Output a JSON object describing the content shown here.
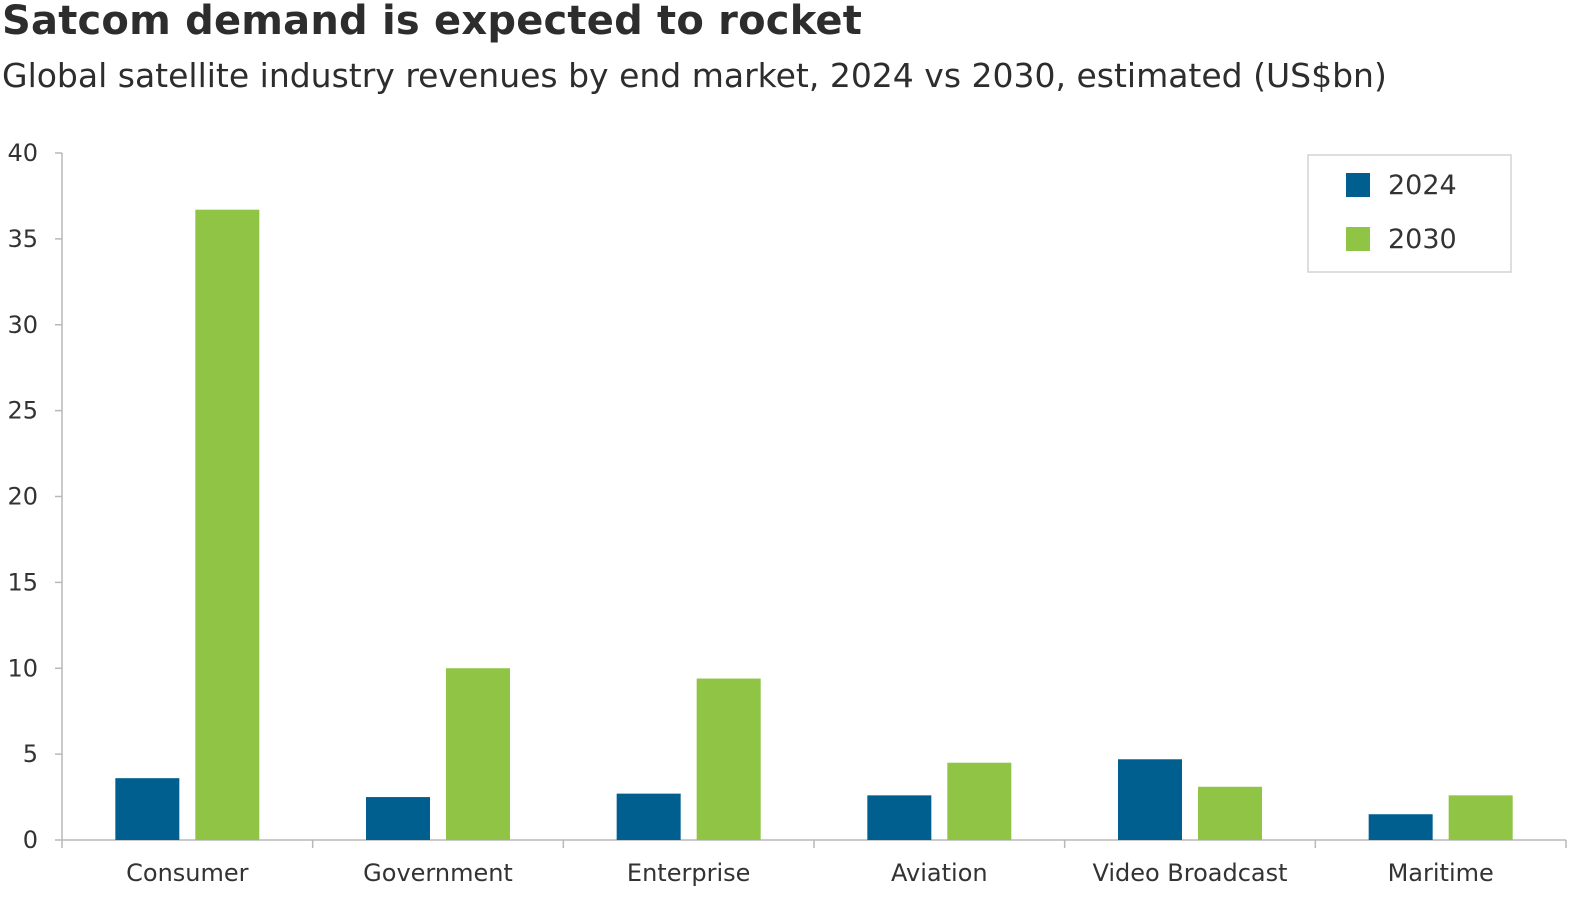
{
  "header": {
    "title": "Satcom demand is expected to rocket",
    "subtitle": "Global satellite industry revenues by end market, 2024 vs 2030, estimated (US$bn)"
  },
  "colors": {
    "series_2024": "#005f8f",
    "series_2030": "#8fc444",
    "axis": "#b8b8b8"
  },
  "chart_data": {
    "type": "bar",
    "title": "Satcom demand is expected to rocket",
    "subtitle": "Global satellite industry revenues by end market, 2024 vs 2030, estimated (US$bn)",
    "categories": [
      "Consumer",
      "Government",
      "Enterprise",
      "Aviation",
      "Video Broadcast",
      "Maritime"
    ],
    "series": [
      {
        "name": "2024",
        "values": [
          3.6,
          2.5,
          2.7,
          2.6,
          4.7,
          1.5
        ]
      },
      {
        "name": "2030",
        "values": [
          36.7,
          10.0,
          9.4,
          4.5,
          3.1,
          2.6
        ]
      }
    ],
    "xlabel": "",
    "ylabel": "",
    "ylim": [
      0,
      40
    ],
    "yticks": [
      "0",
      "5",
      "10",
      "15",
      "20",
      "25",
      "30",
      "35",
      "40"
    ],
    "grid": false,
    "legend": "top-right"
  }
}
